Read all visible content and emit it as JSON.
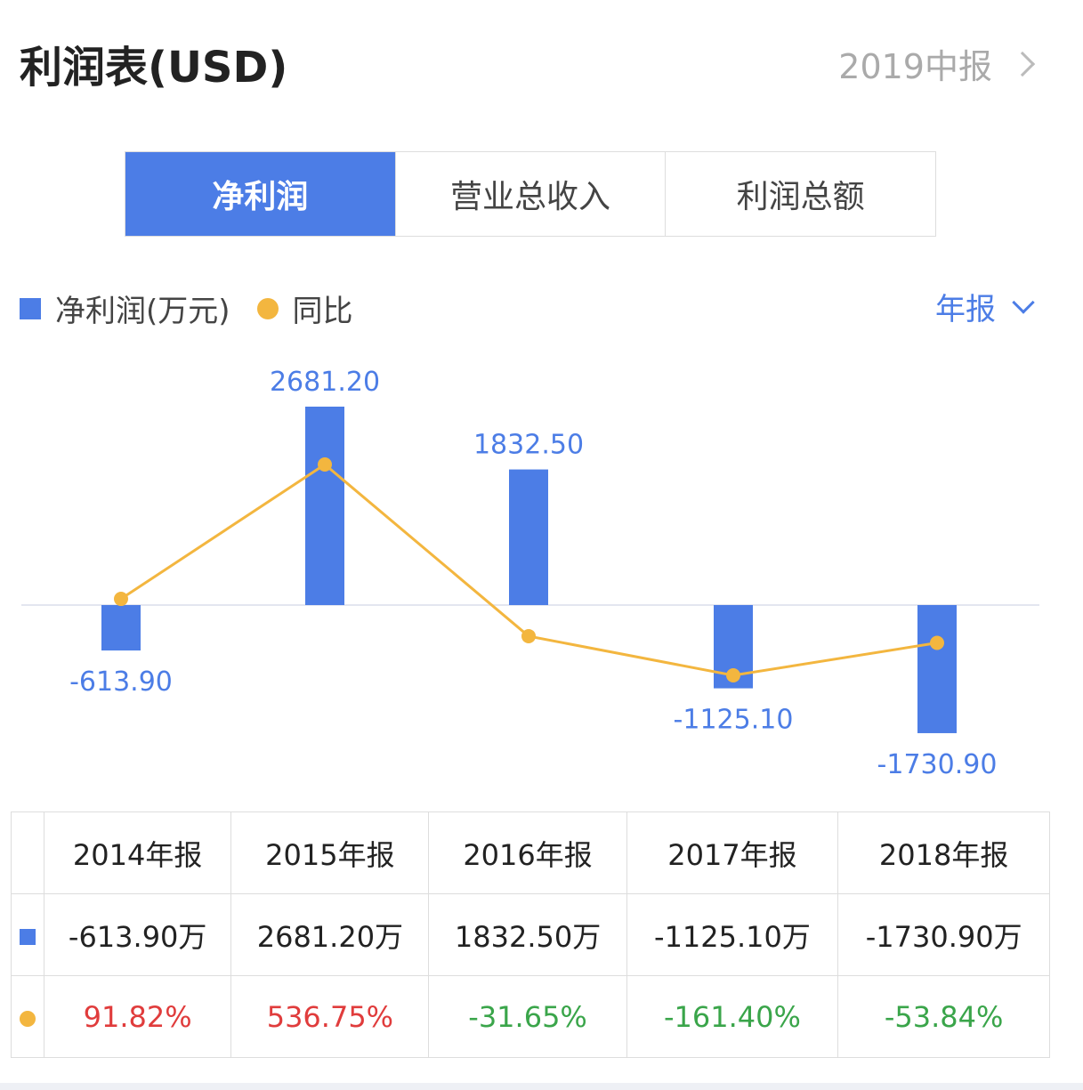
{
  "header": {
    "title": "利润表(USD)",
    "period": "2019中报"
  },
  "tabs": [
    {
      "label": "净利润",
      "active": true
    },
    {
      "label": "营业总收入",
      "active": false
    },
    {
      "label": "利润总额",
      "active": false
    }
  ],
  "legend": {
    "bar": "净利润(万元)",
    "line": "同比"
  },
  "frequency": "年报",
  "colors": {
    "bar": "#4c7de6",
    "line": "#f3b63f",
    "positive": "#e03c3c",
    "negative": "#3aa54a"
  },
  "chart_data": {
    "type": "bar+line",
    "categories": [
      "2014年报",
      "2015年报",
      "2016年报",
      "2017年报",
      "2018年报"
    ],
    "series": [
      {
        "name": "净利润(万元)",
        "type": "bar",
        "values": [
          -613.9,
          2681.2,
          1832.5,
          -1125.1,
          -1730.9
        ],
        "labels": [
          "-613.90",
          "2681.20",
          "1832.50",
          "-1125.10",
          "-1730.90"
        ]
      },
      {
        "name": "同比",
        "type": "line",
        "values": [
          91.82,
          536.75,
          -31.65,
          -161.4,
          -53.84
        ]
      }
    ]
  },
  "table": {
    "headers": [
      "2014年报",
      "2015年报",
      "2016年报",
      "2017年报",
      "2018年报"
    ],
    "profit": [
      "-613.90万",
      "2681.20万",
      "1832.50万",
      "-1125.10万",
      "-1730.90万"
    ],
    "yoy": [
      "91.82%",
      "536.75%",
      "-31.65%",
      "-161.40%",
      "-53.84%"
    ]
  }
}
